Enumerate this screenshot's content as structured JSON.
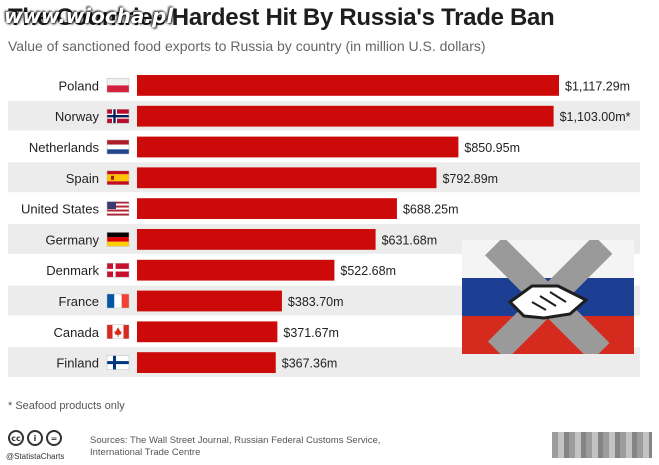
{
  "header": {
    "title": "The Countries Hardest Hit By Russia's Trade Ban",
    "subtitle": "Value of sanctioned food exports to Russia by country (in million U.S. dollars)"
  },
  "watermark": {
    "text": "www.wiocha.pl"
  },
  "chart_data": {
    "type": "bar",
    "orientation": "horizontal",
    "categories": [
      "Poland",
      "Norway",
      "Netherlands",
      "Spain",
      "United States",
      "Germany",
      "Denmark",
      "France",
      "Canada",
      "Finland"
    ],
    "values": [
      1117.29,
      1103.0,
      850.95,
      792.89,
      688.25,
      631.68,
      522.68,
      383.7,
      371.67,
      367.36
    ],
    "data_labels": [
      "$1,117.29m",
      "$1,103.00m*",
      "$850.95m",
      "$792.89m",
      "$688.25m",
      "$631.68m",
      "$522.68m",
      "$383.70m",
      "$371.67m",
      "$367.36m"
    ],
    "flags": [
      "poland-flag-icon",
      "norway-flag-icon",
      "netherlands-flag-icon",
      "spain-flag-icon",
      "united-states-flag-icon",
      "germany-flag-icon",
      "denmark-flag-icon",
      "france-flag-icon",
      "canada-flag-icon",
      "finland-flag-icon"
    ],
    "title": "The Countries Hardest Hit By Russia's Trade Ban",
    "subtitle": "Value of sanctioned food exports to Russia by country (in million U.S. dollars)",
    "xlim": [
      0,
      1117.29
    ],
    "grid": false,
    "legend": "none",
    "bar_color": "#cc0a0a",
    "row_shade_color": "#ececec"
  },
  "emblem": {
    "icon": "handshake-over-russian-flag-icon"
  },
  "footer": {
    "footnote": "* Seafood products only",
    "brand": "@StatistaCharts",
    "sources_line1": "Sources: The Wall Street Journal, Russian Federal Customs Service,",
    "sources_line2": "International Trade Centre",
    "license_icons": [
      "cc-icon",
      "by-icon",
      "nd-icon"
    ]
  }
}
